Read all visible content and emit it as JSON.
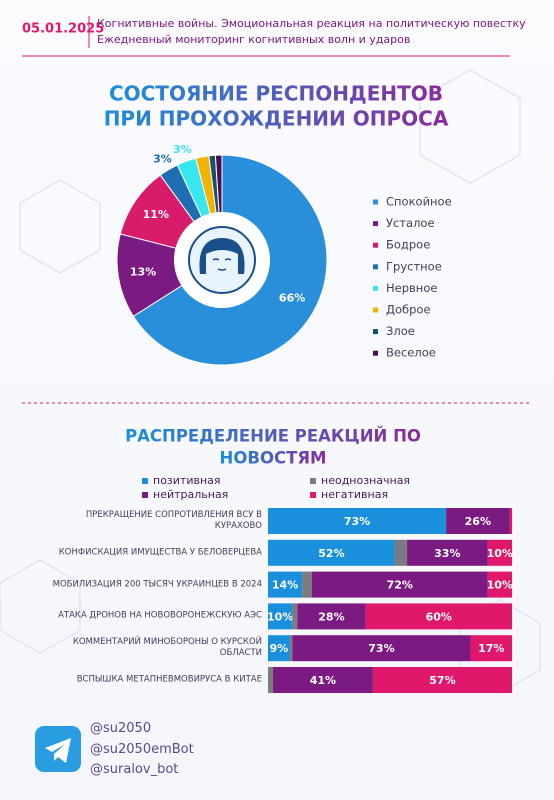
{
  "header": {
    "date": "05.01.2025",
    "title": "Когнитивные войны. Эмоциональная реакция на политическую повестку",
    "subtitle": "Ежедневный мониторинг когнитивных волн и ударов"
  },
  "chart_data": [
    {
      "type": "pie",
      "title": [
        "СОСТОЯНИЕ РЕСПОНДЕНТОВ",
        "ПРИ ПРОХОЖДЕНИИ ОПРОСА"
      ],
      "categories": [
        "Спокойное",
        "Усталое",
        "Бодрое",
        "Грустное",
        "Нервное",
        "Доброе",
        "Злое",
        "Веселое"
      ],
      "values": [
        66,
        13,
        11,
        3,
        3,
        2,
        1,
        1
      ],
      "value_labels": [
        "66%",
        "13%",
        "11%",
        "3%",
        "3%",
        null,
        null,
        null
      ],
      "colors": [
        "#2a8fdb",
        "#7b1a80",
        "#d91b6b",
        "#1f6eb4",
        "#38e6f0",
        "#f0b400",
        "#1b4f6e",
        "#4a0d52"
      ],
      "legend": "right"
    },
    {
      "type": "stacked-bar",
      "title": [
        "РАСПРЕДЕЛЕНИЕ РЕАКЦИЙ ПО",
        "НОВОСТЯМ"
      ],
      "categories": [
        "ПРЕКРАЩЕНИЕ СОПРОТИВЛЕНИЯ ВСУ В КУРАХОВО",
        "КОНФИСКАЦИЯ ИМУЩЕСТВА У БЕЛОВЕРЦЕВА",
        "МОБИЛИЗАЦИЯ 200 ТЫСЯЧ УКРАИНЦЕВ В 2024",
        "АТАКА ДРОНОВ НА НОВОВОРОНЕЖСКУЮ АЭС",
        "КОММЕНТАРИЙ МИНОБОРОНЫ О КУРСКОЙ ОБЛАСТИ",
        "ВСПЫШКА МЕТАПНЕВМОВИРУСА В КИТАЕ"
      ],
      "series": [
        {
          "name": "позитивная",
          "color": "#1a8fdb",
          "values": [
            73,
            52,
            14,
            10,
            9,
            0
          ],
          "value_labels": [
            "73%",
            "52%",
            "14%",
            "10%",
            "9%",
            null
          ]
        },
        {
          "name": "неоднозначная",
          "color": "#7a7a80",
          "values": [
            0,
            5,
            4,
            2,
            1,
            2
          ],
          "value_labels": [
            null,
            null,
            null,
            null,
            null,
            null
          ]
        },
        {
          "name": "нейтральная",
          "color": "#7b1a80",
          "values": [
            26,
            33,
            72,
            28,
            73,
            41
          ],
          "value_labels": [
            "26%",
            "33%",
            "72%",
            "28%",
            "73%",
            "41%"
          ]
        },
        {
          "name": "негативная",
          "color": "#e0186b",
          "values": [
            1,
            10,
            10,
            60,
            17,
            57
          ],
          "value_labels": [
            null,
            "10%",
            "10%",
            "60%",
            "17%",
            "57%"
          ]
        }
      ],
      "legend": "top"
    }
  ],
  "footer": {
    "links": [
      "@su2050",
      "@su2050emBot",
      "@suralov_bot"
    ]
  }
}
